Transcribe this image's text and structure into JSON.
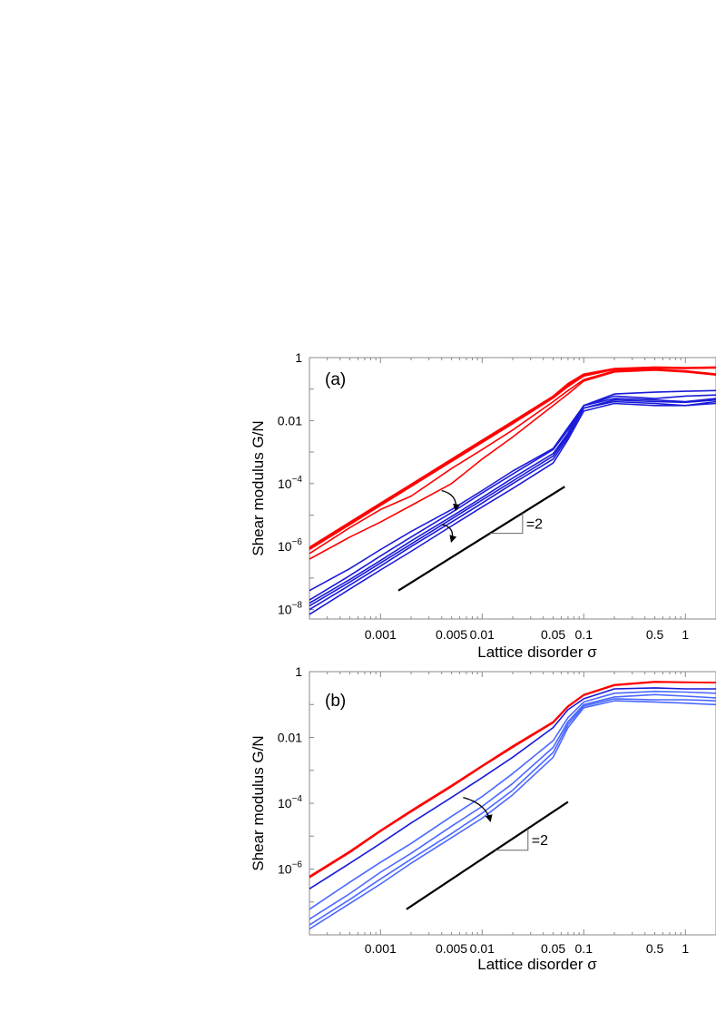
{
  "colors": {
    "red": "#ff0000",
    "blue_dark": "#1a1ad8",
    "blue_light": "#4a68ff",
    "black": "#000000",
    "axis": "#888888"
  },
  "chart_data": [
    {
      "type": "line",
      "panel_label": "(a)",
      "xlabel": "Lattice disorder σ",
      "ylabel": "Shear modulus  G/N",
      "xscale": "log",
      "yscale": "log",
      "xlim": [
        0.0002,
        2
      ],
      "ylim": [
        5e-09,
        1
      ],
      "xticks": [
        0.001,
        0.005,
        0.01,
        0.05,
        0.1,
        0.5,
        1
      ],
      "xtick_labels": [
        "0.001",
        "0.005",
        "0.01",
        "0.05",
        "0.1",
        "0.5",
        "1"
      ],
      "yticks": [
        1,
        0.01,
        0.0001,
        1e-06,
        1e-08
      ],
      "ytick_labels": [
        {
          "base": "1",
          "exp": ""
        },
        {
          "base": "0.01",
          "exp": ""
        },
        {
          "base": "10",
          "exp": "−4"
        },
        {
          "base": "10",
          "exp": "−6"
        },
        {
          "base": "10",
          "exp": "−8"
        }
      ],
      "x": [
        0.0002,
        0.0005,
        0.001,
        0.002,
        0.005,
        0.01,
        0.02,
        0.05,
        0.07,
        0.1,
        0.2,
        0.5,
        1,
        2
      ],
      "series": [
        {
          "name": "red-1",
          "color": "red",
          "values": [
            9.5e-07,
            6e-06,
            2.4e-05,
            9.5e-05,
            0.0006,
            0.0024,
            0.0095,
            0.06,
            0.15,
            0.3,
            0.45,
            0.5,
            0.48,
            0.5
          ]
        },
        {
          "name": "red-2",
          "color": "red",
          "values": [
            9e-07,
            5.6e-06,
            2.2e-05,
            9e-05,
            0.00056,
            0.0022,
            0.009,
            0.058,
            0.14,
            0.28,
            0.44,
            0.48,
            0.47,
            0.49
          ]
        },
        {
          "name": "red-3",
          "color": "red",
          "values": [
            8.5e-07,
            5.3e-06,
            2.1e-05,
            8.5e-05,
            0.00053,
            0.0021,
            0.0085,
            0.055,
            0.13,
            0.27,
            0.43,
            0.47,
            0.46,
            0.48
          ]
        },
        {
          "name": "red-4",
          "color": "red",
          "values": [
            8e-07,
            5e-06,
            2e-05,
            8e-05,
            0.0005,
            0.002,
            0.008,
            0.052,
            0.12,
            0.26,
            0.42,
            0.46,
            0.45,
            0.47
          ]
        },
        {
          "name": "red-5",
          "color": "red",
          "values": [
            6e-07,
            4e-06,
            1.5e-05,
            4e-05,
            0.0003,
            0.0012,
            0.005,
            0.04,
            0.09,
            0.2,
            0.38,
            0.42,
            0.38,
            0.3
          ]
        },
        {
          "name": "red-6",
          "color": "red",
          "values": [
            4e-07,
            2e-06,
            6e-06,
            2e-05,
            0.0001,
            0.0006,
            0.003,
            0.03,
            0.07,
            0.18,
            0.35,
            0.4,
            0.35,
            0.28
          ]
        },
        {
          "name": "blue-1",
          "color": "blue_dark",
          "values": [
            4e-08,
            2e-07,
            8e-07,
            3e-06,
            1.5e-05,
            6e-05,
            0.00025,
            0.0013,
            0.006,
            0.03,
            0.07,
            0.08,
            0.085,
            0.09
          ]
        },
        {
          "name": "blue-2",
          "color": "blue_dark",
          "values": [
            2e-08,
            1.2e-07,
            5e-07,
            2e-06,
            1.2e-05,
            5e-05,
            0.0002,
            0.0012,
            0.005,
            0.03,
            0.06,
            0.05,
            0.06,
            0.065
          ]
        },
        {
          "name": "blue-3",
          "color": "blue_dark",
          "values": [
            1.6e-08,
            9e-08,
            3.6e-07,
            1.5e-06,
            9e-06,
            3.6e-05,
            0.00015,
            0.0009,
            0.004,
            0.03,
            0.05,
            0.045,
            0.04,
            0.05
          ]
        },
        {
          "name": "blue-4",
          "color": "blue_dark",
          "values": [
            1.3e-08,
            7.5e-08,
            3e-07,
            1.2e-06,
            7.5e-06,
            3e-05,
            0.00012,
            0.00075,
            0.0035,
            0.025,
            0.045,
            0.04,
            0.038,
            0.045
          ]
        },
        {
          "name": "blue-5",
          "color": "blue_dark",
          "values": [
            1e-08,
            6e-08,
            2.4e-07,
            1e-06,
            6e-06,
            2.4e-05,
            0.0001,
            0.0006,
            0.003,
            0.025,
            0.04,
            0.035,
            0.03,
            0.04
          ]
        },
        {
          "name": "blue-6",
          "color": "blue_dark",
          "values": [
            7e-09,
            4.5e-08,
            1.8e-07,
            7e-07,
            4.5e-06,
            1.8e-05,
            7e-05,
            0.00045,
            0.0025,
            0.02,
            0.035,
            0.03,
            0.03,
            0.035
          ]
        }
      ],
      "slope_label": "=2",
      "reference_line": {
        "x": [
          0.0015,
          0.065
        ],
        "y": [
          4e-08,
          8e-05
        ]
      },
      "arrows": [
        {
          "from": [
            0.004,
            6e-05
          ],
          "to": [
            0.0055,
            1.5e-05
          ],
          "color": "black"
        },
        {
          "from": [
            0.004,
            5e-06
          ],
          "to": [
            0.005,
            1.5e-06
          ],
          "color": "black"
        }
      ]
    },
    {
      "type": "line",
      "panel_label": "(b)",
      "xlabel": "Lattice disorder σ",
      "ylabel": "Shear modulus  G/N",
      "xscale": "log",
      "yscale": "log",
      "xlim": [
        0.0002,
        2
      ],
      "ylim": [
        1e-08,
        1
      ],
      "xticks": [
        0.001,
        0.005,
        0.01,
        0.05,
        0.1,
        0.5,
        1
      ],
      "xtick_labels": [
        "0.001",
        "0.005",
        "0.01",
        "0.05",
        "0.1",
        "0.5",
        "1"
      ],
      "yticks": [
        1,
        0.01,
        0.0001,
        1e-06
      ],
      "ytick_labels": [
        {
          "base": "1",
          "exp": ""
        },
        {
          "base": "0.01",
          "exp": ""
        },
        {
          "base": "10",
          "exp": "−4"
        },
        {
          "base": "10",
          "exp": "−6"
        }
      ],
      "x": [
        0.0002,
        0.0005,
        0.001,
        0.002,
        0.005,
        0.01,
        0.02,
        0.05,
        0.07,
        0.1,
        0.2,
        0.5,
        1,
        2
      ],
      "series": [
        {
          "name": "red-1",
          "color": "red",
          "values": [
            6e-07,
            3.5e-06,
            1.5e-05,
            6e-05,
            0.00035,
            0.0014,
            0.0055,
            0.03,
            0.09,
            0.2,
            0.4,
            0.5,
            0.48,
            0.47
          ]
        },
        {
          "name": "red-2",
          "color": "red",
          "values": [
            5.5e-07,
            3.2e-06,
            1.4e-05,
            5.5e-05,
            0.00032,
            0.0013,
            0.005,
            0.028,
            0.085,
            0.19,
            0.38,
            0.48,
            0.47,
            0.46
          ]
        },
        {
          "name": "blue-1",
          "color": "blue_dark",
          "values": [
            2.5e-07,
            1.5e-06,
            6e-06,
            2.5e-05,
            0.00015,
            0.0006,
            0.0025,
            0.02,
            0.07,
            0.15,
            0.3,
            0.32,
            0.3,
            0.3
          ]
        },
        {
          "name": "blue-2",
          "color": "blue_light",
          "values": [
            6e-08,
            4e-07,
            1.6e-06,
            6e-06,
            4e-05,
            0.00016,
            0.0008,
            0.008,
            0.04,
            0.12,
            0.22,
            0.25,
            0.24,
            0.22
          ]
        },
        {
          "name": "blue-3",
          "color": "blue_light",
          "values": [
            3e-08,
            1.8e-07,
            8e-07,
            3e-06,
            2e-05,
            8e-05,
            0.0004,
            0.005,
            0.03,
            0.1,
            0.17,
            0.2,
            0.18,
            0.16
          ]
        },
        {
          "name": "blue-4",
          "color": "blue_light",
          "values": [
            2e-08,
            1.2e-07,
            5e-07,
            2e-06,
            1.2e-05,
            5e-05,
            0.00025,
            0.0035,
            0.025,
            0.09,
            0.15,
            0.14,
            0.14,
            0.13
          ]
        },
        {
          "name": "blue-5",
          "color": "blue_light",
          "values": [
            1.5e-08,
            9e-08,
            3.5e-07,
            1.5e-06,
            9e-06,
            3.5e-05,
            0.00018,
            0.0025,
            0.02,
            0.08,
            0.13,
            0.12,
            0.11,
            0.1
          ]
        }
      ],
      "slope_label": "=2",
      "reference_line": {
        "x": [
          0.0018,
          0.07
        ],
        "y": [
          6e-08,
          0.00011
        ]
      },
      "arrows": [
        {
          "from": [
            0.0065,
            0.00015
          ],
          "to": [
            0.012,
            3e-05
          ],
          "color": "black"
        }
      ]
    }
  ]
}
